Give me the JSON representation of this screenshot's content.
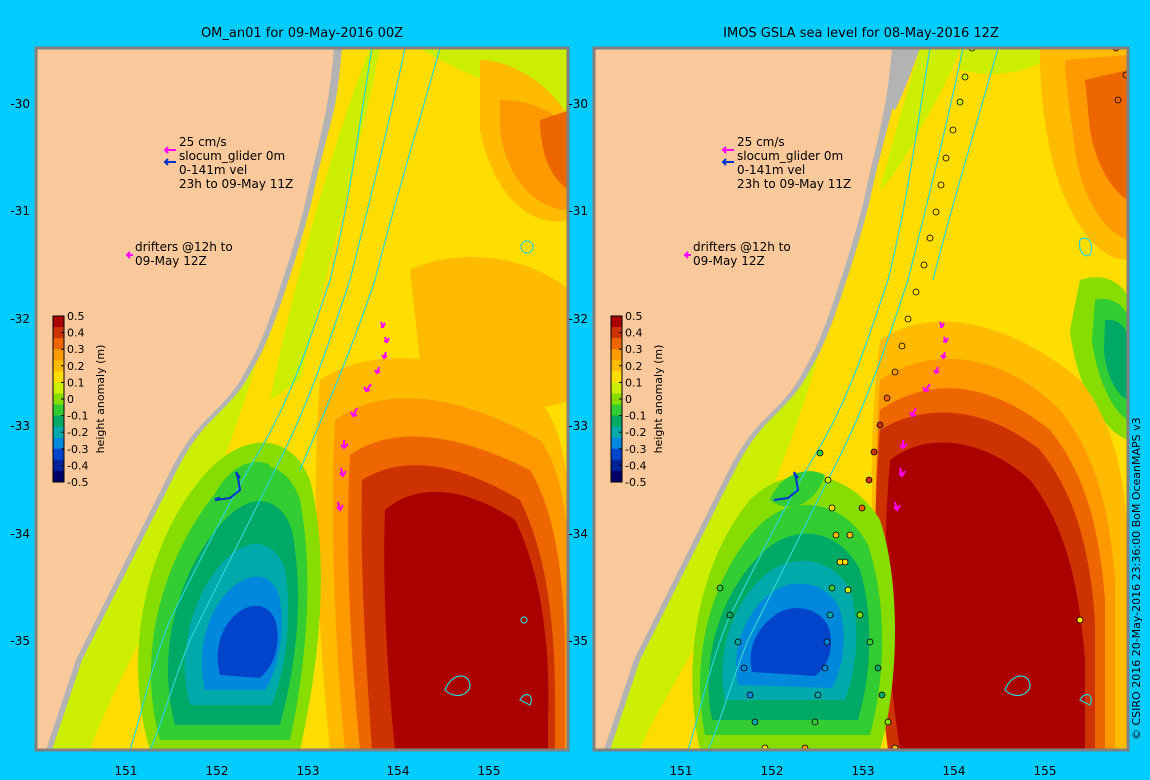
{
  "panels": [
    {
      "title": "OM_an01 for 09-May-2016 00Z",
      "x_ticks": [
        "151",
        "152",
        "153",
        "154",
        "155"
      ],
      "y_ticks": [
        "-30",
        "-31",
        "-32",
        "-33",
        "-34",
        "-35"
      ],
      "legend": {
        "scale_label": "25 cm/s",
        "glider_label": "slocum_glider 0m",
        "vel_label": "0-141m vel",
        "time_label": "23h to 09-May 11Z",
        "drifters_label": "drifters @12h to",
        "drifters_time": "09-May 12Z"
      },
      "colorbar": {
        "label": "height anomaly (m)",
        "ticks": [
          "0.5",
          "0.4",
          "0.3",
          "0.2",
          "0.1",
          "0",
          "-0.1",
          "-0.2",
          "-0.3",
          "-0.4",
          "-0.5"
        ]
      }
    },
    {
      "title": "IMOS GSLA sea level  for 08-May-2016 12Z",
      "x_ticks": [
        "151",
        "152",
        "153",
        "154",
        "155"
      ],
      "y_ticks": [
        "-30",
        "-31",
        "-32",
        "-33",
        "-34",
        "-35"
      ],
      "legend": {
        "scale_label": "25 cm/s",
        "glider_label": "slocum_glider 0m",
        "vel_label": "0-141m vel",
        "time_label": "23h to 09-May 11Z",
        "drifters_label": "drifters @12h to",
        "drifters_time": "09-May 12Z"
      },
      "colorbar": {
        "label": "height anomaly (m)",
        "ticks": [
          "0.5",
          "0.4",
          "0.3",
          "0.2",
          "0.1",
          "0",
          "-0.1",
          "-0.2",
          "-0.3",
          "-0.4",
          "-0.5"
        ]
      }
    }
  ],
  "credit": "© CSIRO 2016  20-May-2016 23:36:00 BoM OceanMAPS v3",
  "colors": {
    "background": "#00ccff",
    "land": "#f9c99b",
    "coast_shelf": "#b3b3b3",
    "contour": "#2bd4d4",
    "drifter": "#ff00ff",
    "glider": "#0033cc"
  }
}
